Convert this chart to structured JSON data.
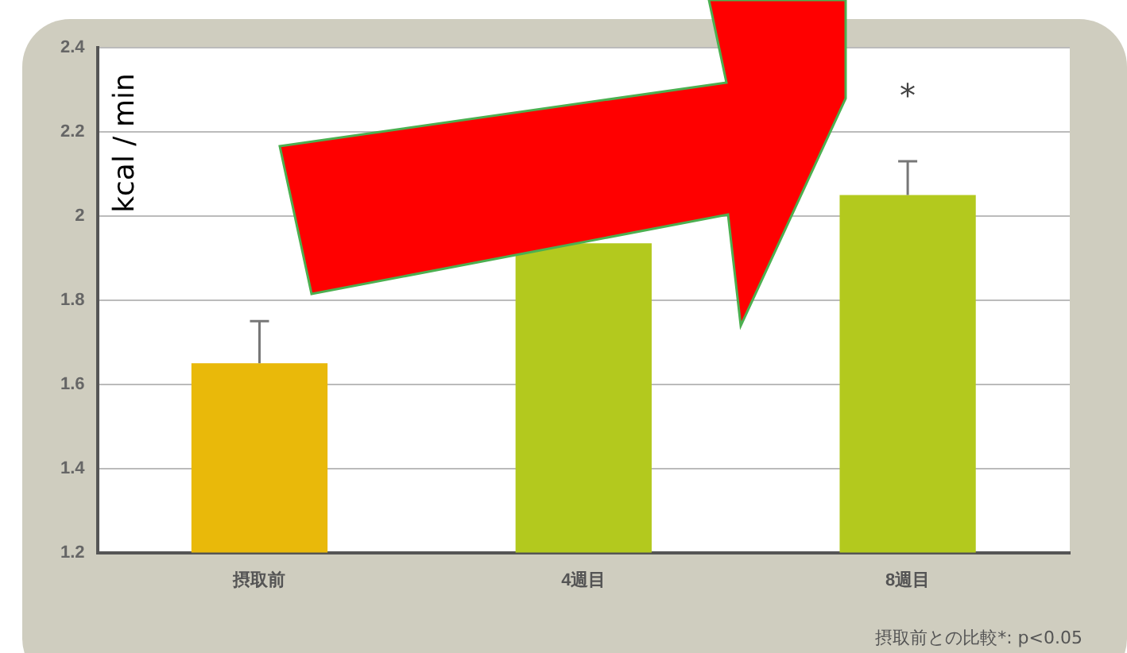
{
  "chart_data": {
    "type": "bar",
    "ylabel": "kcal / min",
    "categories": [
      "摂取前",
      "4週目",
      "8週目"
    ],
    "values": [
      1.65,
      1.935,
      2.05
    ],
    "colors": [
      "#e9b90a",
      "#b3c91e",
      "#b3c91e"
    ],
    "errors": [
      0.1,
      null,
      0.08
    ],
    "ylim": [
      1.2,
      2.4
    ],
    "yticks": [
      1.2,
      1.4,
      1.6,
      1.8,
      2,
      2.2,
      2.4
    ],
    "grid": "y",
    "legend": false,
    "annotations": [
      "*",
      "摂取前との比較*: p<0.05"
    ]
  }
}
